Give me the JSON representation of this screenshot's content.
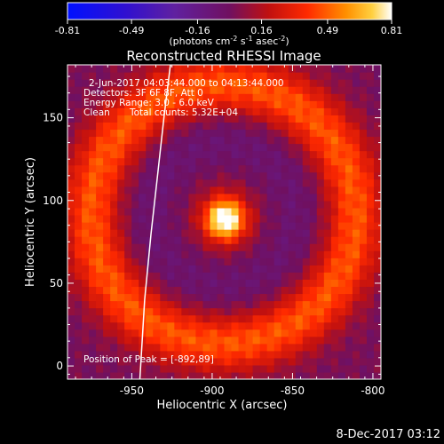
{
  "colorbar": {
    "ticks": [
      "-0.81",
      "-0.49",
      "-0.16",
      "0.16",
      "0.49",
      "0.81"
    ],
    "range": [
      -0.81,
      0.81
    ],
    "units_main": "(photons cm",
    "units_exp1": "-2",
    "units_mid": " s",
    "units_exp2": "-1",
    "units_tail": " asec",
    "units_exp3": "-2",
    "units_close": ")"
  },
  "chart_data": {
    "type": "heatmap",
    "title": "Reconstructed RHESSI Image",
    "xlabel": "Heliocentric X (arcsec)",
    "ylabel": "Heliocentric Y (arcsec)",
    "xlim": [
      -990,
      -795
    ],
    "ylim": [
      -8,
      182
    ],
    "x_ticks": [
      -950,
      -900,
      -850,
      -800
    ],
    "y_ticks": [
      0,
      50,
      100,
      150
    ],
    "x_tick_labels": [
      "-950",
      "-900",
      "-850",
      "-800"
    ],
    "y_tick_labels": [
      "0",
      "50",
      "100",
      "150"
    ],
    "peak": {
      "x": -892,
      "y": 89,
      "value": 0.81
    },
    "ring": {
      "center_x": -893,
      "center_y": 92,
      "radius": 82,
      "value": 0.45
    },
    "limb_curve": [
      [
        -945,
        -8
      ],
      [
        -942,
        40
      ],
      [
        -938,
        80
      ],
      [
        -934,
        115
      ],
      [
        -930,
        150
      ],
      [
        -926,
        182
      ]
    ],
    "annotations": {
      "time_range": "2-Jun-2017 04:03:44.000 to 04:13:44.000",
      "detectors": "Detectors: 3F 6F 8F, Att 0",
      "energy": "Energy Range: 3.0 - 6.0 keV",
      "clean": "Clean",
      "total_counts": "Total counts: 5.32E+04",
      "peak_position": "Position of Peak = [-892,89]"
    }
  },
  "footer": {
    "timestamp": "8-Dec-2017 03:12"
  }
}
